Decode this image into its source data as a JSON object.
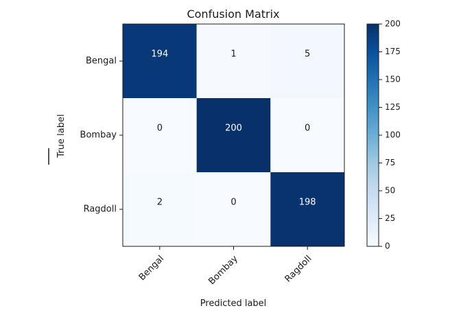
{
  "chart_data": {
    "type": "heatmap",
    "title": "Confusion Matrix",
    "xlabel": "Predicted label",
    "ylabel": "True label",
    "x_categories": [
      "Bengal",
      "Bombay",
      "Ragdoll"
    ],
    "y_categories": [
      "Bengal",
      "Bombay",
      "Ragdoll"
    ],
    "values": [
      [
        194,
        1,
        5
      ],
      [
        0,
        200,
        0
      ],
      [
        2,
        0,
        198
      ]
    ],
    "colorbar": {
      "range": [
        0,
        200
      ],
      "ticks": [
        0,
        25,
        50,
        75,
        100,
        125,
        150,
        175,
        200
      ],
      "colormap": "Blues",
      "low_color": "#f7fbff",
      "high_color": "#08306b"
    }
  }
}
